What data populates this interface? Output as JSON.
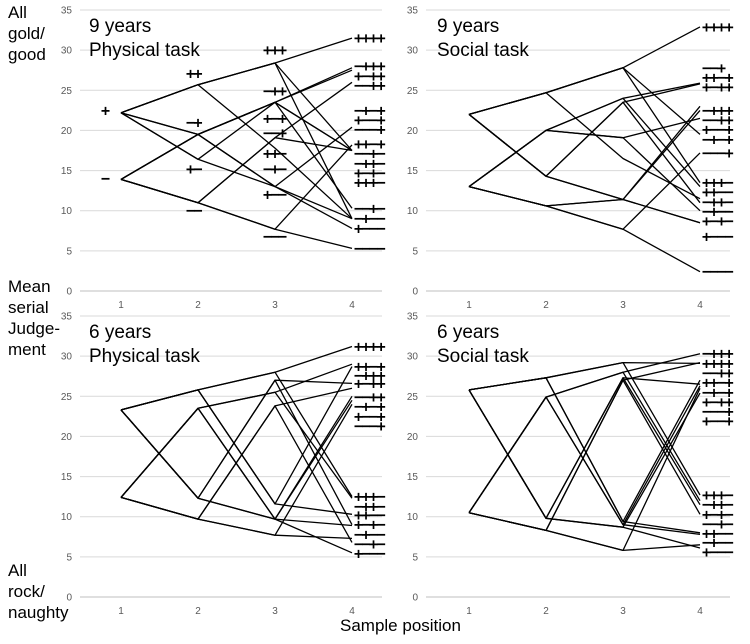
{
  "figure": {
    "ylabel_top": [
      "All",
      "gold/",
      "good"
    ],
    "ylabel_mid": [
      "Mean",
      "serial",
      "Judge-",
      "ment"
    ],
    "ylabel_bottom": [
      "All",
      "rock/",
      "naughty"
    ],
    "xlabel": "Sample position"
  },
  "chart_data": [
    {
      "type": "line",
      "panel": "top-left",
      "title": [
        "9 years",
        "Physical task"
      ],
      "x": [
        1,
        2,
        3,
        4
      ],
      "xticks": [
        "1",
        "2",
        "3",
        "4"
      ],
      "ylim": [
        0,
        35
      ],
      "yticks": [
        "0",
        "5",
        "10",
        "15",
        "20",
        "25",
        "30",
        "35"
      ],
      "grid": "horizontal",
      "series": [
        {
          "name": "++++",
          "values": [
            22.2,
            25.7,
            28.4,
            31.5
          ]
        },
        {
          "name": "++−+",
          "values": [
            22.2,
            25.7,
            28.4,
            17.5
          ]
        },
        {
          "name": "+−++",
          "values": [
            22.2,
            19.5,
            23.5,
            27.5
          ]
        },
        {
          "name": "+−−+",
          "values": [
            22.2,
            19.5,
            23.5,
            17.5
          ]
        },
        {
          "name": "+++−",
          "values": [
            22.2,
            25.7,
            28.4,
            9.0
          ]
        },
        {
          "name": "++−−",
          "values": [
            22.2,
            25.7,
            17.8,
            9.0
          ]
        },
        {
          "name": "+−+−",
          "values": [
            22.2,
            16.4,
            23.5,
            10.3
          ]
        },
        {
          "name": "+−−−",
          "values": [
            22.2,
            16.4,
            13.0,
            7.8
          ]
        },
        {
          "name": "−+++",
          "values": [
            13.9,
            19.5,
            23.5,
            27.8
          ]
        },
        {
          "name": "−++−",
          "values": [
            13.9,
            19.5,
            23.5,
            17.5
          ]
        },
        {
          "name": "−+−+",
          "values": [
            13.9,
            19.5,
            13.0,
            20.4
          ]
        },
        {
          "name": "−+−−",
          "values": [
            13.9,
            19.5,
            13.0,
            9.0
          ]
        },
        {
          "name": "−−++",
          "values": [
            13.9,
            11.0,
            19.1,
            26.0
          ]
        },
        {
          "name": "−−+−",
          "values": [
            13.9,
            11.0,
            19.1,
            17.5
          ]
        },
        {
          "name": "−−−+",
          "values": [
            13.9,
            11.0,
            7.7,
            18.2
          ]
        },
        {
          "name": "−−−−",
          "values": [
            13.9,
            11.0,
            7.7,
            5.3
          ]
        }
      ],
      "annotations": [
        {
          "text": "+",
          "x": 1,
          "y": 22.5
        },
        {
          "text": "−",
          "x": 1,
          "y": 14.0
        },
        {
          "text": "++",
          "x": 2,
          "y": 27.1
        },
        {
          "text": "−+",
          "x": 2,
          "y": 21.0
        },
        {
          "text": "+−",
          "x": 2,
          "y": 15.2
        },
        {
          "text": "−−",
          "x": 2,
          "y": 10.0
        },
        {
          "text": "+++",
          "x": 3,
          "y": 30.0
        },
        {
          "text": "−++",
          "x": 3,
          "y": 24.9
        },
        {
          "text": "+−+",
          "x": 3,
          "y": 21.5
        },
        {
          "text": "−−+",
          "x": 3,
          "y": 19.7
        },
        {
          "text": "++−",
          "x": 3,
          "y": 17.1
        },
        {
          "text": "−+−",
          "x": 3,
          "y": 15.2
        },
        {
          "text": "+−−",
          "x": 3,
          "y": 12.0
        },
        {
          "text": "−−−",
          "x": 3,
          "y": 6.8
        },
        {
          "text": "++++",
          "x": 4,
          "y": 31.5
        },
        {
          "text": "−+++",
          "x": 4,
          "y": 28.0
        },
        {
          "text": "+−++",
          "x": 4,
          "y": 26.8
        },
        {
          "text": "−−++",
          "x": 4,
          "y": 25.6
        },
        {
          "text": "−+−+",
          "x": 4,
          "y": 22.5
        },
        {
          "text": "+−−+",
          "x": 4,
          "y": 21.3
        },
        {
          "text": "−−−+",
          "x": 4,
          "y": 20.1
        },
        {
          "text": "++−+",
          "x": 4,
          "y": 18.3
        },
        {
          "text": "−−+−",
          "x": 4,
          "y": 17.1
        },
        {
          "text": "−++−",
          "x": 4,
          "y": 15.9
        },
        {
          "text": "+−+−",
          "x": 4,
          "y": 14.7
        },
        {
          "text": "+++−",
          "x": 4,
          "y": 13.5
        },
        {
          "text": "−−+−",
          "x": 4,
          "y": 10.3
        },
        {
          "text": "−+−−",
          "x": 4,
          "y": 9.0
        },
        {
          "text": "+−−−",
          "x": 4,
          "y": 7.8
        },
        {
          "text": "−−−−",
          "x": 4,
          "y": 5.3
        }
      ]
    },
    {
      "type": "line",
      "panel": "top-right",
      "title": [
        "9 years",
        "Social task"
      ],
      "x": [
        1,
        2,
        3,
        4
      ],
      "xticks": [
        "1",
        "2",
        "3",
        "4"
      ],
      "ylim": [
        0,
        35
      ],
      "yticks": [
        "0",
        "5",
        "10",
        "15",
        "20",
        "25",
        "30",
        "35"
      ],
      "grid": "horizontal",
      "series": [
        {
          "name": "++++",
          "values": [
            22.0,
            24.7,
            27.8,
            32.9
          ]
        },
        {
          "name": "++−+",
          "values": [
            22.0,
            24.7,
            27.8,
            19.5
          ]
        },
        {
          "name": "++−−",
          "values": [
            22.0,
            24.7,
            16.5,
            11.5
          ]
        },
        {
          "name": "+−++",
          "values": [
            22.0,
            14.3,
            23.5,
            25.8
          ]
        },
        {
          "name": "+−+−",
          "values": [
            22.0,
            14.3,
            23.5,
            11.0
          ]
        },
        {
          "name": "+−−+",
          "values": [
            22.0,
            14.3,
            11.4,
            22.5
          ]
        },
        {
          "name": "+−−−",
          "values": [
            22.0,
            14.3,
            11.4,
            8.5
          ]
        },
        {
          "name": "+++−",
          "values": [
            22.0,
            24.7,
            27.8,
            13.5
          ]
        },
        {
          "name": "−+++",
          "values": [
            13.0,
            20.0,
            24.0,
            25.9
          ]
        },
        {
          "name": "−++−",
          "values": [
            13.0,
            20.0,
            24.0,
            13.0
          ]
        },
        {
          "name": "−+−+",
          "values": [
            13.0,
            20.0,
            19.1,
            21.5
          ]
        },
        {
          "name": "−+−−",
          "values": [
            13.0,
            20.0,
            19.1,
            10.0
          ]
        },
        {
          "name": "−−++",
          "values": [
            13.0,
            10.6,
            11.4,
            23.0
          ]
        },
        {
          "name": "−−+−",
          "values": [
            13.0,
            10.6,
            11.4,
            8.5
          ]
        },
        {
          "name": "−−−+",
          "values": [
            13.0,
            10.6,
            7.7,
            17.2
          ]
        },
        {
          "name": "−−−−",
          "values": [
            13.0,
            10.6,
            7.7,
            2.4
          ]
        }
      ],
      "annotations": [
        {
          "text": "++++",
          "x": 4,
          "y": 32.9
        },
        {
          "text": "−−+",
          "x": 4,
          "y": 27.8
        },
        {
          "text": "++−+",
          "x": 4,
          "y": 26.6
        },
        {
          "text": "+−++",
          "x": 4,
          "y": 25.4
        },
        {
          "text": "−+++",
          "x": 4,
          "y": 22.5
        },
        {
          "text": "−−++",
          "x": 4,
          "y": 21.3
        },
        {
          "text": "+−−+",
          "x": 4,
          "y": 20.1
        },
        {
          "text": "−+−+",
          "x": 4,
          "y": 18.9
        },
        {
          "text": "−−−+",
          "x": 4,
          "y": 17.2
        },
        {
          "text": "+++−",
          "x": 4,
          "y": 13.5
        },
        {
          "text": "++−−",
          "x": 4,
          "y": 12.3
        },
        {
          "text": "−++−",
          "x": 4,
          "y": 11.1
        },
        {
          "text": "−+−−",
          "x": 4,
          "y": 9.9
        },
        {
          "text": "+−+−",
          "x": 4,
          "y": 8.7
        },
        {
          "text": "+−−−",
          "x": 4,
          "y": 6.8
        },
        {
          "text": "−−−−",
          "x": 4,
          "y": 2.4
        }
      ]
    },
    {
      "type": "line",
      "panel": "bottom-left",
      "title": [
        "6 years",
        "Physical task"
      ],
      "x": [
        1,
        2,
        3,
        4
      ],
      "xticks": [
        "1",
        "2",
        "3",
        "4"
      ],
      "ylim": [
        0,
        35
      ],
      "yticks": [
        "0",
        "5",
        "10",
        "15",
        "20",
        "25",
        "30",
        "35"
      ],
      "grid": "horizontal",
      "series": [
        {
          "name": "++++",
          "values": [
            23.3,
            25.8,
            28.0,
            31.2
          ]
        },
        {
          "name": "++−+",
          "values": [
            23.3,
            25.8,
            11.6,
            28.7
          ]
        },
        {
          "name": "+++−",
          "values": [
            23.3,
            25.8,
            28.0,
            12.5
          ]
        },
        {
          "name": "++−−",
          "values": [
            23.3,
            25.8,
            11.6,
            10.3
          ]
        },
        {
          "name": "+−++",
          "values": [
            23.3,
            12.3,
            27.0,
            26.6
          ]
        },
        {
          "name": "+−+−",
          "values": [
            23.3,
            12.3,
            27.0,
            9.0
          ]
        },
        {
          "name": "+−−+",
          "values": [
            23.3,
            12.3,
            9.7,
            24.5
          ]
        },
        {
          "name": "+−−−",
          "values": [
            23.3,
            12.3,
            9.7,
            5.5
          ]
        },
        {
          "name": "−+++",
          "values": [
            12.4,
            23.5,
            25.5,
            29.0
          ]
        },
        {
          "name": "−++−",
          "values": [
            12.4,
            23.5,
            25.5,
            12.3
          ]
        },
        {
          "name": "−+−+",
          "values": [
            12.4,
            23.5,
            9.7,
            25.0
          ]
        },
        {
          "name": "−+−−",
          "values": [
            12.4,
            23.5,
            9.7,
            8.9
          ]
        },
        {
          "name": "−−++",
          "values": [
            12.4,
            9.7,
            23.8,
            26.0
          ]
        },
        {
          "name": "−−+−",
          "values": [
            12.4,
            9.7,
            23.8,
            6.8
          ]
        },
        {
          "name": "−−−+",
          "values": [
            12.4,
            9.7,
            7.7,
            24.0
          ]
        },
        {
          "name": "−−−−",
          "values": [
            12.4,
            9.7,
            7.7,
            7.3
          ]
        }
      ],
      "annotations": [
        {
          "text": "++++",
          "x": 4,
          "y": 31.2
        },
        {
          "text": "++−+",
          "x": 4,
          "y": 28.7
        },
        {
          "text": "−+++",
          "x": 4,
          "y": 27.6
        },
        {
          "text": "+−++",
          "x": 4,
          "y": 26.6
        },
        {
          "text": "−−++",
          "x": 4,
          "y": 24.9
        },
        {
          "text": "−+−+",
          "x": 4,
          "y": 23.7
        },
        {
          "text": "+−−+",
          "x": 4,
          "y": 22.5
        },
        {
          "text": "−−−+",
          "x": 4,
          "y": 21.3
        },
        {
          "text": "+++−",
          "x": 4,
          "y": 12.5
        },
        {
          "text": "−++−",
          "x": 4,
          "y": 11.3
        },
        {
          "text": "++−−",
          "x": 4,
          "y": 10.2
        },
        {
          "text": "+−+−",
          "x": 4,
          "y": 9.0
        },
        {
          "text": "−+−−",
          "x": 4,
          "y": 7.8
        },
        {
          "text": "−−+−",
          "x": 4,
          "y": 6.6
        },
        {
          "text": "+−−−",
          "x": 4,
          "y": 5.4
        }
      ]
    },
    {
      "type": "line",
      "panel": "bottom-right",
      "title": [
        "6 years",
        "Social task"
      ],
      "x": [
        1,
        2,
        3,
        4
      ],
      "xticks": [
        "1",
        "2",
        "3",
        "4"
      ],
      "ylim": [
        0,
        35
      ],
      "yticks": [
        "0",
        "5",
        "10",
        "15",
        "20",
        "25",
        "30",
        "35"
      ],
      "grid": "horizontal",
      "series": [
        {
          "name": "++++",
          "values": [
            25.8,
            27.3,
            29.2,
            29.1
          ]
        },
        {
          "name": "+++−",
          "values": [
            25.8,
            27.3,
            29.2,
            12.7
          ]
        },
        {
          "name": "++−+",
          "values": [
            25.8,
            27.3,
            9.4,
            27.0
          ]
        },
        {
          "name": "++−−",
          "values": [
            25.8,
            27.3,
            9.4,
            8.0
          ]
        },
        {
          "name": "+−++",
          "values": [
            25.8,
            9.8,
            27.3,
            26.5
          ]
        },
        {
          "name": "+−+−",
          "values": [
            25.8,
            9.8,
            27.3,
            11.5
          ]
        },
        {
          "name": "+−−+",
          "values": [
            25.8,
            9.8,
            8.7,
            25.4
          ]
        },
        {
          "name": "+−−−",
          "values": [
            25.8,
            9.8,
            8.7,
            6.1
          ]
        },
        {
          "name": "−+++",
          "values": [
            10.5,
            24.9,
            28.0,
            30.3
          ]
        },
        {
          "name": "−++−",
          "values": [
            10.5,
            24.9,
            28.0,
            12.0
          ]
        },
        {
          "name": "−+−+",
          "values": [
            10.5,
            24.9,
            9.0,
            26.3
          ]
        },
        {
          "name": "−+−−",
          "values": [
            10.5,
            24.9,
            9.0,
            7.8
          ]
        },
        {
          "name": "−−++",
          "values": [
            10.5,
            8.3,
            27.0,
            29.2
          ]
        },
        {
          "name": "−−+−",
          "values": [
            10.5,
            8.3,
            27.0,
            10.3
          ]
        },
        {
          "name": "−−−+",
          "values": [
            10.5,
            8.3,
            5.8,
            26.0
          ]
        },
        {
          "name": "−−−−",
          "values": [
            10.5,
            8.3,
            5.8,
            6.5
          ]
        }
      ],
      "annotations": [
        {
          "text": "−+++",
          "x": 4,
          "y": 30.3
        },
        {
          "text": "++++",
          "x": 4,
          "y": 29.1
        },
        {
          "text": "−−++",
          "x": 4,
          "y": 27.9
        },
        {
          "text": "++−+",
          "x": 4,
          "y": 26.7
        },
        {
          "text": "−+−+",
          "x": 4,
          "y": 25.5
        },
        {
          "text": "+−++",
          "x": 4,
          "y": 24.3
        },
        {
          "text": "−−−+",
          "x": 4,
          "y": 23.1
        },
        {
          "text": "+−−+",
          "x": 4,
          "y": 21.9
        },
        {
          "text": "+++−",
          "x": 4,
          "y": 12.7
        },
        {
          "text": "−++−",
          "x": 4,
          "y": 11.5
        },
        {
          "text": "+−+−",
          "x": 4,
          "y": 10.3
        },
        {
          "text": "−−+−",
          "x": 4,
          "y": 9.1
        },
        {
          "text": "++−−",
          "x": 4,
          "y": 7.9
        },
        {
          "text": "−+−−",
          "x": 4,
          "y": 6.8
        },
        {
          "text": "+−−−",
          "x": 4,
          "y": 5.6
        }
      ]
    }
  ]
}
